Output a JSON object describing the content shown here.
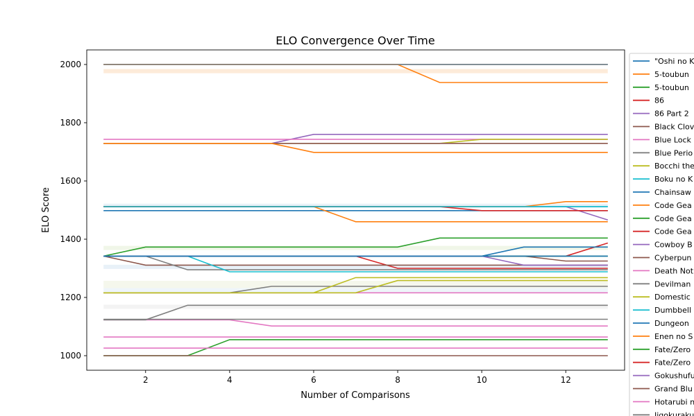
{
  "chart_data": {
    "type": "line",
    "title": "ELO Convergence Over Time",
    "xlabel": "Number of Comparisons",
    "ylabel": "ELO Score",
    "xlim": [
      0.6,
      13.4
    ],
    "ylim": [
      950,
      2050
    ],
    "xticks": [
      2,
      4,
      6,
      8,
      10,
      12
    ],
    "yticks": [
      1000,
      1200,
      1400,
      1600,
      1800,
      2000
    ],
    "grid": false,
    "legend_position": "right",
    "x": [
      1,
      2,
      3,
      4,
      5,
      6,
      7,
      8,
      9,
      10,
      11,
      12,
      13
    ],
    "series": [
      {
        "name": "\"Oshi no K",
        "color": "#1f77b4",
        "values": [
          2000,
          2000,
          2000,
          2000,
          2000,
          2000,
          2000,
          2000,
          2000,
          2000,
          2000,
          2000,
          2000
        ]
      },
      {
        "name": "5-toubun",
        "color": "#ff7f0e",
        "values": [
          2000,
          2000,
          2000,
          2000,
          2000,
          2000,
          2000,
          2000,
          1938,
          1938,
          1938,
          1938,
          1938
        ]
      },
      {
        "name": "5-toubun",
        "color": "#2ca02c",
        "values": [
          1342,
          1373,
          1373,
          1373,
          1373,
          1373,
          1373,
          1373,
          1404,
          1404,
          1404,
          1404,
          1404
        ]
      },
      {
        "name": "86",
        "color": "#d62728",
        "values": [
          1342,
          1342,
          1342,
          1342,
          1342,
          1342,
          1342,
          1300,
          1300,
          1300,
          1300,
          1300,
          1300
        ]
      },
      {
        "name": "86 Part 2",
        "color": "#9467bd",
        "values": [
          1729,
          1729,
          1729,
          1729,
          1729,
          1760,
          1760,
          1760,
          1760,
          1760,
          1760,
          1760,
          1760
        ]
      },
      {
        "name": "Black Clov",
        "color": "#8c564b",
        "values": [
          1342,
          1311,
          1311,
          1311,
          1311,
          1311,
          1311,
          1311,
          1311,
          1311,
          1311,
          1311,
          1311
        ]
      },
      {
        "name": "Blue Lock",
        "color": "#e377c2",
        "values": [
          1743,
          1743,
          1743,
          1743,
          1743,
          1743,
          1743,
          1743,
          1743,
          1743,
          1743,
          1743,
          1743
        ]
      },
      {
        "name": "Blue Perio",
        "color": "#7f7f7f",
        "values": [
          1342,
          1342,
          1295,
          1295,
          1295,
          1295,
          1295,
          1295,
          1295,
          1295,
          1295,
          1295,
          1295
        ]
      },
      {
        "name": "Bocchi the",
        "color": "#bcbd22",
        "values": [
          1729,
          1729,
          1729,
          1729,
          1729,
          1729,
          1729,
          1729,
          1729,
          1743,
          1743,
          1743,
          1743
        ]
      },
      {
        "name": "Boku no K",
        "color": "#17becf",
        "values": [
          1342,
          1342,
          1342,
          1288,
          1288,
          1288,
          1288,
          1288,
          1288,
          1288,
          1288,
          1288,
          1288
        ]
      },
      {
        "name": "Chainsaw",
        "color": "#1f77b4",
        "values": [
          1498,
          1498,
          1498,
          1498,
          1498,
          1498,
          1498,
          1498,
          1498,
          1498,
          1498,
          1498,
          1498
        ]
      },
      {
        "name": "Code Gea",
        "color": "#ff7f0e",
        "values": [
          1512,
          1512,
          1512,
          1512,
          1512,
          1512,
          1460,
          1460,
          1460,
          1460,
          1460,
          1460,
          1460
        ]
      },
      {
        "name": "Code Gea",
        "color": "#2ca02c",
        "values": [
          1000,
          1000,
          1000,
          1055,
          1055,
          1055,
          1055,
          1055,
          1055,
          1055,
          1055,
          1055,
          1055
        ]
      },
      {
        "name": "Code Gea",
        "color": "#d62728",
        "values": [
          1342,
          1342,
          1342,
          1342,
          1342,
          1342,
          1342,
          1342,
          1342,
          1342,
          1342,
          1342,
          1387
        ]
      },
      {
        "name": "Cowboy B",
        "color": "#9467bd",
        "values": [
          1512,
          1512,
          1512,
          1512,
          1512,
          1512,
          1512,
          1512,
          1512,
          1512,
          1512,
          1512,
          1466
        ]
      },
      {
        "name": "Cyberpun",
        "color": "#8c564b",
        "values": [
          1342,
          1342,
          1342,
          1342,
          1342,
          1342,
          1342,
          1342,
          1342,
          1342,
          1342,
          1325,
          1325
        ]
      },
      {
        "name": "Death Not",
        "color": "#e377c2",
        "values": [
          1216,
          1216,
          1216,
          1216,
          1216,
          1216,
          1216,
          1216,
          1216,
          1216,
          1216,
          1216,
          1216
        ]
      },
      {
        "name": "Devilman",
        "color": "#7f7f7f",
        "values": [
          1216,
          1216,
          1216,
          1216,
          1238,
          1238,
          1238,
          1238,
          1238,
          1238,
          1238,
          1238,
          1238
        ]
      },
      {
        "name": "Domestic",
        "color": "#bcbd22",
        "values": [
          1216,
          1216,
          1216,
          1216,
          1216,
          1216,
          1268,
          1268,
          1268,
          1268,
          1268,
          1268,
          1268
        ]
      },
      {
        "name": "Dumbbell",
        "color": "#17becf",
        "values": [
          1512,
          1512,
          1512,
          1512,
          1512,
          1512,
          1512,
          1512,
          1512,
          1512,
          1512,
          1512,
          1512
        ]
      },
      {
        "name": "Dungeon",
        "color": "#1f77b4",
        "values": [
          1342,
          1342,
          1342,
          1342,
          1342,
          1342,
          1342,
          1342,
          1342,
          1342,
          1373,
          1373,
          1373
        ]
      },
      {
        "name": "Enen no S",
        "color": "#ff7f0e",
        "values": [
          1512,
          1512,
          1512,
          1512,
          1512,
          1512,
          1512,
          1512,
          1512,
          1512,
          1512,
          1529,
          1529
        ]
      },
      {
        "name": "Fate/Zero",
        "color": "#2ca02c",
        "values": [
          1342,
          1342,
          1342,
          1342,
          1342,
          1342,
          1342,
          1342,
          1342,
          1342,
          1342,
          1342,
          1342
        ]
      },
      {
        "name": "Fate/Zero",
        "color": "#d62728",
        "values": [
          1512,
          1512,
          1512,
          1512,
          1512,
          1512,
          1512,
          1512,
          1512,
          1498,
          1498,
          1498,
          1498
        ]
      },
      {
        "name": "Gokushufu",
        "color": "#9467bd",
        "values": [
          1342,
          1342,
          1342,
          1342,
          1342,
          1342,
          1342,
          1342,
          1342,
          1342,
          1311,
          1311,
          1311
        ]
      },
      {
        "name": "Grand Blu",
        "color": "#8c564b",
        "values": [
          1729,
          1729,
          1729,
          1729,
          1729,
          1729,
          1729,
          1729,
          1729,
          1729,
          1729,
          1729,
          1729
        ]
      },
      {
        "name": "Hotarubi n",
        "color": "#e377c2",
        "values": [
          1123,
          1123,
          1123,
          1123,
          1102,
          1102,
          1102,
          1102,
          1102,
          1102,
          1102,
          1102,
          1102
        ]
      },
      {
        "name": "Jigokuraku",
        "color": "#7f7f7f",
        "values": [
          1123,
          1123,
          1173,
          1173,
          1173,
          1173,
          1173,
          1173,
          1173,
          1173,
          1173,
          1173,
          1173
        ]
      },
      {
        "name": "",
        "color": "#bcbd22",
        "values": [
          1216,
          1216,
          1216,
          1216,
          1216,
          1216,
          1216,
          1258,
          1258,
          1258,
          1258,
          1258,
          1258
        ]
      },
      {
        "name": "",
        "color": "#1f77b4",
        "values": [
          1342,
          1342,
          1342,
          1342,
          1342,
          1342,
          1342,
          1342,
          1342,
          1342,
          1342,
          1342,
          1342
        ]
      },
      {
        "name": "",
        "color": "#ff7f0e",
        "values": [
          1729,
          1729,
          1729,
          1729,
          1729,
          1698,
          1698,
          1698,
          1698,
          1698,
          1698,
          1698,
          1698
        ]
      },
      {
        "name": "",
        "color": "#e377c2",
        "values": [
          1026,
          1026,
          1026,
          1026,
          1026,
          1026,
          1026,
          1026,
          1026,
          1026,
          1026,
          1026,
          1026
        ]
      },
      {
        "name": "",
        "color": "#e377c2",
        "values": [
          1064,
          1064,
          1064,
          1064,
          1064,
          1064,
          1064,
          1064,
          1064,
          1064,
          1064,
          1064,
          1064
        ]
      },
      {
        "name": "",
        "color": "#8c564b",
        "values": [
          1000,
          1000,
          1000,
          1000,
          1000,
          1000,
          1000,
          1000,
          1000,
          1000,
          1000,
          1000,
          1000
        ]
      },
      {
        "name": "",
        "color": "#7f7f7f",
        "values": [
          1125,
          1125,
          1125,
          1125,
          1125,
          1125,
          1125,
          1125,
          1125,
          1125,
          1125,
          1125,
          1125
        ]
      },
      {
        "name": "",
        "color": "#17becf",
        "values": [
          1512,
          1512,
          1512,
          1512,
          1512,
          1512,
          1512,
          1512,
          1512,
          1512,
          1512,
          1512,
          1512
        ]
      },
      {
        "name": "",
        "color": "#7f7f7f",
        "values": [
          2000,
          2000,
          2000,
          2000,
          2000,
          2000,
          2000,
          2000,
          2000,
          2000,
          2000,
          2000,
          2000
        ]
      }
    ],
    "faint_bands": [
      {
        "y": 1977,
        "color": "#fdebd9"
      },
      {
        "y": 1515,
        "color": "#e8f1f8"
      },
      {
        "y": 1370,
        "color": "#f0f6e8"
      },
      {
        "y": 1305,
        "color": "#e8f1f8"
      },
      {
        "y": 1250,
        "color": "#f5f7ec"
      },
      {
        "y": 1238,
        "color": "#f5f7ec"
      },
      {
        "y": 1225,
        "color": "#eef5fa"
      },
      {
        "y": 1168,
        "color": "#f3f3f3"
      }
    ]
  }
}
